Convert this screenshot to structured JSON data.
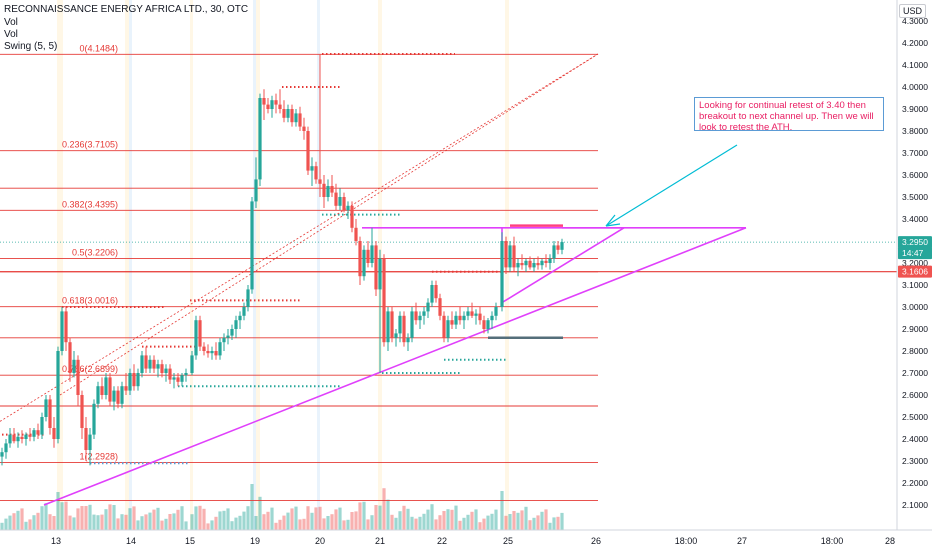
{
  "header": {
    "title": "RECONNAISSANCE ENERGY AFRICA LTD., 30, OTC",
    "indicators": [
      "Vol",
      "Vol",
      "Swing (5, 5)"
    ],
    "currency": "USD"
  },
  "annotation": "Looking for continual retest of 3.40 then breakout to next channel up. Then we will look to retest the ATH.",
  "chart_data": {
    "type": "candlestick",
    "title": "",
    "ylim": [
      2.05,
      4.33
    ],
    "y_ticks": [
      "4.3000",
      "4.2000",
      "4.1000",
      "4.0000",
      "3.9000",
      "3.8000",
      "3.7000",
      "3.6000",
      "3.5000",
      "3.4000",
      "3.3000",
      "3.2000",
      "3.1000",
      "3.0000",
      "2.9000",
      "2.8000",
      "2.7000",
      "2.6000",
      "2.5000",
      "2.4000",
      "2.3000",
      "2.2000",
      "2.1000"
    ],
    "x_ticks": [
      {
        "label": "13",
        "t": 56
      },
      {
        "label": "14",
        "t": 131
      },
      {
        "label": "15",
        "t": 190
      },
      {
        "label": "19",
        "t": 255
      },
      {
        "label": "20",
        "t": 320
      },
      {
        "label": "21",
        "t": 380
      },
      {
        "label": "22",
        "t": 442
      },
      {
        "label": "25",
        "t": 508
      },
      {
        "label": "26",
        "t": 596
      },
      {
        "label": "18:00",
        "t": 686
      },
      {
        "label": "27",
        "t": 742
      },
      {
        "label": "18:00",
        "t": 832
      },
      {
        "label": "28",
        "t": 890
      }
    ],
    "fib_levels": [
      {
        "label": "0(4.1484)",
        "value": 4.1484
      },
      {
        "label": "0.236(3.7105)",
        "value": 3.7105
      },
      {
        "label": "0.382(3.4395)",
        "value": 3.4395
      },
      {
        "label": "0.5(3.2206)",
        "value": 3.2206
      },
      {
        "label": "0.618(3.0016)",
        "value": 3.0016
      },
      {
        "label": "0.786(2.6899)",
        "value": 2.6899
      },
      {
        "label": "1(2.2928)",
        "value": 2.2928
      }
    ],
    "extra_levels": [
      3.54,
      3.16,
      2.86,
      2.55,
      2.12
    ],
    "price_labels": [
      {
        "text": "3.2950",
        "value": 3.295,
        "color": "#26a69a"
      },
      {
        "text": "14:47",
        "value": 3.245,
        "color": "#26a69a"
      },
      {
        "text": "3.1606",
        "value": 3.1606,
        "color": "#ef5350"
      }
    ],
    "candles": [
      {
        "t": 2,
        "o": 2.32,
        "h": 2.36,
        "l": 2.28,
        "c": 2.34
      },
      {
        "t": 6,
        "o": 2.34,
        "h": 2.4,
        "l": 2.31,
        "c": 2.38
      },
      {
        "t": 10,
        "o": 2.38,
        "h": 2.45,
        "l": 2.36,
        "c": 2.42
      },
      {
        "t": 14,
        "o": 2.42,
        "h": 2.45,
        "l": 2.38,
        "c": 2.39
      },
      {
        "t": 18,
        "o": 2.39,
        "h": 2.43,
        "l": 2.36,
        "c": 2.41
      },
      {
        "t": 22,
        "o": 2.41,
        "h": 2.44,
        "l": 2.38,
        "c": 2.4
      },
      {
        "t": 26,
        "o": 2.4,
        "h": 2.43,
        "l": 2.37,
        "c": 2.42
      },
      {
        "t": 30,
        "o": 2.42,
        "h": 2.45,
        "l": 2.39,
        "c": 2.41
      },
      {
        "t": 34,
        "o": 2.41,
        "h": 2.45,
        "l": 2.39,
        "c": 2.44
      },
      {
        "t": 38,
        "o": 2.44,
        "h": 2.47,
        "l": 2.4,
        "c": 2.42
      },
      {
        "t": 42,
        "o": 2.42,
        "h": 2.52,
        "l": 2.4,
        "c": 2.5
      },
      {
        "t": 46,
        "o": 2.5,
        "h": 2.6,
        "l": 2.48,
        "c": 2.58
      },
      {
        "t": 50,
        "o": 2.58,
        "h": 2.6,
        "l": 2.42,
        "c": 2.45
      },
      {
        "t": 54,
        "o": 2.45,
        "h": 2.5,
        "l": 2.36,
        "c": 2.4
      },
      {
        "t": 58,
        "o": 2.4,
        "h": 2.82,
        "l": 2.38,
        "c": 2.8
      },
      {
        "t": 62,
        "o": 2.8,
        "h": 3.0,
        "l": 2.78,
        "c": 2.98
      },
      {
        "t": 66,
        "o": 2.98,
        "h": 3.0,
        "l": 2.8,
        "c": 2.84
      },
      {
        "t": 70,
        "o": 2.84,
        "h": 2.86,
        "l": 2.66,
        "c": 2.7
      },
      {
        "t": 74,
        "o": 2.7,
        "h": 2.8,
        "l": 2.68,
        "c": 2.76
      },
      {
        "t": 78,
        "o": 2.76,
        "h": 2.78,
        "l": 2.55,
        "c": 2.6
      },
      {
        "t": 82,
        "o": 2.6,
        "h": 2.62,
        "l": 2.4,
        "c": 2.45
      },
      {
        "t": 86,
        "o": 2.45,
        "h": 2.5,
        "l": 2.3,
        "c": 2.35
      },
      {
        "t": 90,
        "o": 2.35,
        "h": 2.45,
        "l": 2.28,
        "c": 2.42
      },
      {
        "t": 94,
        "o": 2.42,
        "h": 2.58,
        "l": 2.4,
        "c": 2.56
      },
      {
        "t": 98,
        "o": 2.56,
        "h": 2.66,
        "l": 2.54,
        "c": 2.64
      },
      {
        "t": 102,
        "o": 2.64,
        "h": 2.68,
        "l": 2.58,
        "c": 2.6
      },
      {
        "t": 106,
        "o": 2.6,
        "h": 2.7,
        "l": 2.58,
        "c": 2.68
      },
      {
        "t": 110,
        "o": 2.68,
        "h": 2.7,
        "l": 2.55,
        "c": 2.57
      },
      {
        "t": 114,
        "o": 2.57,
        "h": 2.64,
        "l": 2.53,
        "c": 2.62
      },
      {
        "t": 118,
        "o": 2.62,
        "h": 2.64,
        "l": 2.54,
        "c": 2.56
      },
      {
        "t": 122,
        "o": 2.56,
        "h": 2.66,
        "l": 2.54,
        "c": 2.64
      },
      {
        "t": 126,
        "o": 2.64,
        "h": 2.7,
        "l": 2.6,
        "c": 2.62
      },
      {
        "t": 130,
        "o": 2.62,
        "h": 2.72,
        "l": 2.6,
        "c": 2.7
      },
      {
        "t": 134,
        "o": 2.7,
        "h": 2.74,
        "l": 2.62,
        "c": 2.64
      },
      {
        "t": 138,
        "o": 2.64,
        "h": 2.72,
        "l": 2.62,
        "c": 2.7
      },
      {
        "t": 142,
        "o": 2.7,
        "h": 2.8,
        "l": 2.68,
        "c": 2.78
      },
      {
        "t": 146,
        "o": 2.78,
        "h": 2.82,
        "l": 2.7,
        "c": 2.72
      },
      {
        "t": 150,
        "o": 2.72,
        "h": 2.78,
        "l": 2.7,
        "c": 2.76
      },
      {
        "t": 154,
        "o": 2.76,
        "h": 2.78,
        "l": 2.7,
        "c": 2.72
      },
      {
        "t": 158,
        "o": 2.72,
        "h": 2.76,
        "l": 2.68,
        "c": 2.74
      },
      {
        "t": 162,
        "o": 2.74,
        "h": 2.76,
        "l": 2.68,
        "c": 2.7
      },
      {
        "t": 166,
        "o": 2.7,
        "h": 2.74,
        "l": 2.66,
        "c": 2.72
      },
      {
        "t": 170,
        "o": 2.72,
        "h": 2.74,
        "l": 2.65,
        "c": 2.67
      },
      {
        "t": 174,
        "o": 2.67,
        "h": 2.7,
        "l": 2.63,
        "c": 2.68
      },
      {
        "t": 178,
        "o": 2.68,
        "h": 2.7,
        "l": 2.64,
        "c": 2.66
      },
      {
        "t": 182,
        "o": 2.66,
        "h": 2.7,
        "l": 2.64,
        "c": 2.69
      },
      {
        "t": 186,
        "o": 2.69,
        "h": 2.72,
        "l": 2.66,
        "c": 2.7
      },
      {
        "t": 192,
        "o": 2.7,
        "h": 2.8,
        "l": 2.69,
        "c": 2.78
      },
      {
        "t": 196,
        "o": 2.78,
        "h": 2.96,
        "l": 2.76,
        "c": 2.94
      },
      {
        "t": 200,
        "o": 2.94,
        "h": 2.96,
        "l": 2.8,
        "c": 2.82
      },
      {
        "t": 204,
        "o": 2.82,
        "h": 2.84,
        "l": 2.78,
        "c": 2.8
      },
      {
        "t": 208,
        "o": 2.8,
        "h": 2.83,
        "l": 2.77,
        "c": 2.79
      },
      {
        "t": 212,
        "o": 2.79,
        "h": 2.82,
        "l": 2.76,
        "c": 2.8
      },
      {
        "t": 216,
        "o": 2.8,
        "h": 2.84,
        "l": 2.76,
        "c": 2.78
      },
      {
        "t": 220,
        "o": 2.78,
        "h": 2.86,
        "l": 2.76,
        "c": 2.84
      },
      {
        "t": 224,
        "o": 2.84,
        "h": 2.88,
        "l": 2.8,
        "c": 2.86
      },
      {
        "t": 228,
        "o": 2.86,
        "h": 2.9,
        "l": 2.83,
        "c": 2.87
      },
      {
        "t": 232,
        "o": 2.87,
        "h": 2.92,
        "l": 2.85,
        "c": 2.9
      },
      {
        "t": 236,
        "o": 2.9,
        "h": 2.96,
        "l": 2.86,
        "c": 2.94
      },
      {
        "t": 240,
        "o": 2.94,
        "h": 2.98,
        "l": 2.9,
        "c": 2.96
      },
      {
        "t": 244,
        "o": 2.96,
        "h": 3.02,
        "l": 2.94,
        "c": 3.0
      },
      {
        "t": 248,
        "o": 3.0,
        "h": 3.1,
        "l": 2.98,
        "c": 3.08
      },
      {
        "t": 252,
        "o": 3.08,
        "h": 3.5,
        "l": 3.06,
        "c": 3.48
      },
      {
        "t": 256,
        "o": 3.48,
        "h": 3.68,
        "l": 3.45,
        "c": 3.58
      },
      {
        "t": 260,
        "o": 3.58,
        "h": 3.97,
        "l": 3.55,
        "c": 3.95
      },
      {
        "t": 264,
        "o": 3.95,
        "h": 3.99,
        "l": 3.85,
        "c": 3.92
      },
      {
        "t": 268,
        "o": 3.92,
        "h": 3.95,
        "l": 3.88,
        "c": 3.9
      },
      {
        "t": 272,
        "o": 3.9,
        "h": 3.96,
        "l": 3.86,
        "c": 3.94
      },
      {
        "t": 276,
        "o": 3.94,
        "h": 3.97,
        "l": 3.88,
        "c": 3.92
      },
      {
        "t": 280,
        "o": 3.92,
        "h": 3.99,
        "l": 3.88,
        "c": 3.9
      },
      {
        "t": 284,
        "o": 3.9,
        "h": 3.94,
        "l": 3.84,
        "c": 3.86
      },
      {
        "t": 288,
        "o": 3.86,
        "h": 3.92,
        "l": 3.84,
        "c": 3.9
      },
      {
        "t": 292,
        "o": 3.9,
        "h": 3.92,
        "l": 3.82,
        "c": 3.84
      },
      {
        "t": 296,
        "o": 3.84,
        "h": 3.9,
        "l": 3.82,
        "c": 3.88
      },
      {
        "t": 300,
        "o": 3.88,
        "h": 3.91,
        "l": 3.8,
        "c": 3.82
      },
      {
        "t": 304,
        "o": 3.82,
        "h": 3.86,
        "l": 3.76,
        "c": 3.8
      },
      {
        "t": 308,
        "o": 3.8,
        "h": 3.82,
        "l": 3.6,
        "c": 3.62
      },
      {
        "t": 312,
        "o": 3.62,
        "h": 3.68,
        "l": 3.55,
        "c": 3.64
      },
      {
        "t": 316,
        "o": 3.64,
        "h": 3.66,
        "l": 3.56,
        "c": 3.58
      },
      {
        "t": 320,
        "o": 3.58,
        "h": 4.15,
        "l": 3.5,
        "c": 3.56
      },
      {
        "t": 324,
        "o": 3.56,
        "h": 3.6,
        "l": 3.45,
        "c": 3.5
      },
      {
        "t": 328,
        "o": 3.5,
        "h": 3.58,
        "l": 3.48,
        "c": 3.55
      },
      {
        "t": 332,
        "o": 3.55,
        "h": 3.6,
        "l": 3.5,
        "c": 3.52
      },
      {
        "t": 336,
        "o": 3.52,
        "h": 3.56,
        "l": 3.44,
        "c": 3.46
      },
      {
        "t": 340,
        "o": 3.46,
        "h": 3.54,
        "l": 3.44,
        "c": 3.5
      },
      {
        "t": 344,
        "o": 3.5,
        "h": 3.52,
        "l": 3.43,
        "c": 3.44
      },
      {
        "t": 348,
        "o": 3.44,
        "h": 3.48,
        "l": 3.4,
        "c": 3.46
      },
      {
        "t": 352,
        "o": 3.46,
        "h": 3.48,
        "l": 3.34,
        "c": 3.36
      },
      {
        "t": 356,
        "o": 3.36,
        "h": 3.4,
        "l": 3.28,
        "c": 3.3
      },
      {
        "t": 360,
        "o": 3.3,
        "h": 3.32,
        "l": 3.1,
        "c": 3.14
      },
      {
        "t": 364,
        "o": 3.14,
        "h": 3.28,
        "l": 3.12,
        "c": 3.26
      },
      {
        "t": 368,
        "o": 3.26,
        "h": 3.3,
        "l": 3.18,
        "c": 3.2
      },
      {
        "t": 372,
        "o": 3.2,
        "h": 3.36,
        "l": 3.18,
        "c": 3.28
      },
      {
        "t": 376,
        "o": 3.28,
        "h": 3.3,
        "l": 3.05,
        "c": 3.08
      },
      {
        "t": 380,
        "o": 3.08,
        "h": 3.26,
        "l": 2.7,
        "c": 3.22
      },
      {
        "t": 384,
        "o": 3.22,
        "h": 3.24,
        "l": 2.82,
        "c": 2.84
      },
      {
        "t": 388,
        "o": 2.84,
        "h": 3.0,
        "l": 2.8,
        "c": 2.98
      },
      {
        "t": 392,
        "o": 2.98,
        "h": 3.0,
        "l": 2.84,
        "c": 2.86
      },
      {
        "t": 396,
        "o": 2.86,
        "h": 2.9,
        "l": 2.82,
        "c": 2.88
      },
      {
        "t": 400,
        "o": 2.88,
        "h": 2.98,
        "l": 2.84,
        "c": 2.96
      },
      {
        "t": 404,
        "o": 2.96,
        "h": 2.98,
        "l": 2.82,
        "c": 2.84
      },
      {
        "t": 408,
        "o": 2.84,
        "h": 2.88,
        "l": 2.8,
        "c": 2.86
      },
      {
        "t": 412,
        "o": 2.86,
        "h": 3.0,
        "l": 2.84,
        "c": 2.98
      },
      {
        "t": 416,
        "o": 2.98,
        "h": 3.02,
        "l": 2.92,
        "c": 2.94
      },
      {
        "t": 420,
        "o": 2.94,
        "h": 2.98,
        "l": 2.9,
        "c": 2.96
      },
      {
        "t": 424,
        "o": 2.96,
        "h": 3.0,
        "l": 2.92,
        "c": 2.98
      },
      {
        "t": 428,
        "o": 2.98,
        "h": 3.04,
        "l": 2.95,
        "c": 3.02
      },
      {
        "t": 432,
        "o": 3.02,
        "h": 3.12,
        "l": 3.0,
        "c": 3.1
      },
      {
        "t": 436,
        "o": 3.1,
        "h": 3.12,
        "l": 3.02,
        "c": 3.04
      },
      {
        "t": 440,
        "o": 3.04,
        "h": 3.06,
        "l": 2.94,
        "c": 2.96
      },
      {
        "t": 444,
        "o": 2.96,
        "h": 2.98,
        "l": 2.84,
        "c": 2.86
      },
      {
        "t": 448,
        "o": 2.86,
        "h": 2.96,
        "l": 2.84,
        "c": 2.94
      },
      {
        "t": 452,
        "o": 2.94,
        "h": 2.98,
        "l": 2.9,
        "c": 2.92
      },
      {
        "t": 456,
        "o": 2.92,
        "h": 2.98,
        "l": 2.9,
        "c": 2.96
      },
      {
        "t": 460,
        "o": 2.96,
        "h": 3.0,
        "l": 2.92,
        "c": 2.94
      },
      {
        "t": 464,
        "o": 2.94,
        "h": 2.98,
        "l": 2.9,
        "c": 2.96
      },
      {
        "t": 468,
        "o": 2.96,
        "h": 3.0,
        "l": 2.94,
        "c": 2.98
      },
      {
        "t": 472,
        "o": 2.98,
        "h": 3.02,
        "l": 2.95,
        "c": 2.96
      },
      {
        "t": 476,
        "o": 2.96,
        "h": 2.99,
        "l": 2.92,
        "c": 2.97
      },
      {
        "t": 480,
        "o": 2.97,
        "h": 3.0,
        "l": 2.92,
        "c": 2.94
      },
      {
        "t": 484,
        "o": 2.94,
        "h": 2.96,
        "l": 2.88,
        "c": 2.9
      },
      {
        "t": 488,
        "o": 2.9,
        "h": 2.95,
        "l": 2.88,
        "c": 2.94
      },
      {
        "t": 492,
        "o": 2.94,
        "h": 2.98,
        "l": 2.9,
        "c": 2.96
      },
      {
        "t": 496,
        "o": 2.96,
        "h": 3.02,
        "l": 2.94,
        "c": 3.0
      },
      {
        "t": 502,
        "o": 3.0,
        "h": 3.34,
        "l": 2.98,
        "c": 3.3
      },
      {
        "t": 506,
        "o": 3.3,
        "h": 3.32,
        "l": 3.15,
        "c": 3.18
      },
      {
        "t": 510,
        "o": 3.18,
        "h": 3.3,
        "l": 3.16,
        "c": 3.28
      },
      {
        "t": 514,
        "o": 3.28,
        "h": 3.32,
        "l": 3.16,
        "c": 3.18
      },
      {
        "t": 518,
        "o": 3.18,
        "h": 3.22,
        "l": 3.14,
        "c": 3.2
      },
      {
        "t": 522,
        "o": 3.2,
        "h": 3.24,
        "l": 3.17,
        "c": 3.19
      },
      {
        "t": 526,
        "o": 3.19,
        "h": 3.22,
        "l": 3.16,
        "c": 3.21
      },
      {
        "t": 530,
        "o": 3.21,
        "h": 3.23,
        "l": 3.17,
        "c": 3.18
      },
      {
        "t": 534,
        "o": 3.18,
        "h": 3.22,
        "l": 3.16,
        "c": 3.2
      },
      {
        "t": 538,
        "o": 3.2,
        "h": 3.23,
        "l": 3.17,
        "c": 3.19
      },
      {
        "t": 542,
        "o": 3.19,
        "h": 3.22,
        "l": 3.17,
        "c": 3.21
      },
      {
        "t": 546,
        "o": 3.21,
        "h": 3.24,
        "l": 3.18,
        "c": 3.2
      },
      {
        "t": 550,
        "o": 3.2,
        "h": 3.24,
        "l": 3.17,
        "c": 3.22
      },
      {
        "t": 554,
        "o": 3.22,
        "h": 3.3,
        "l": 3.2,
        "c": 3.28
      },
      {
        "t": 558,
        "o": 3.28,
        "h": 3.3,
        "l": 3.24,
        "c": 3.26
      },
      {
        "t": 562,
        "o": 3.26,
        "h": 3.31,
        "l": 3.24,
        "c": 3.295
      }
    ]
  }
}
